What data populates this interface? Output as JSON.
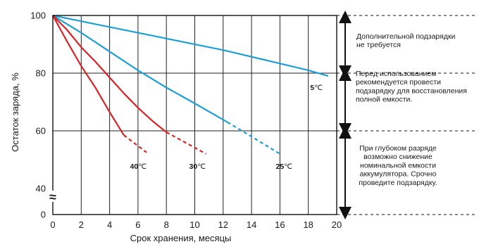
{
  "chart_data": {
    "type": "line",
    "xlabel": "Срок хранения, месяцы",
    "ylabel": "Остаток заряда, %",
    "xlim": [
      0,
      20
    ],
    "ylim": [
      0,
      100
    ],
    "y_axis_break": "≈",
    "grid": true,
    "x_ticks": [
      "0",
      "2",
      "4",
      "6",
      "8",
      "10",
      "12",
      "14",
      "16",
      "18",
      "20"
    ],
    "y_ticks": [
      "0",
      "40",
      "60",
      "80",
      "100"
    ],
    "series": [
      {
        "name": "5℃",
        "color": "#1e9fd8",
        "solid": [
          [
            0,
            100
          ],
          [
            3,
            97
          ],
          [
            6,
            94
          ],
          [
            9,
            91
          ],
          [
            12,
            88
          ],
          [
            15,
            84.5
          ],
          [
            18,
            81
          ],
          [
            19.4,
            79
          ]
        ],
        "dashed": []
      },
      {
        "name": "25℃",
        "color": "#1e9fd8",
        "solid": [
          [
            0,
            100
          ],
          [
            2,
            94
          ],
          [
            4,
            87.5
          ],
          [
            6,
            81
          ],
          [
            8,
            75
          ],
          [
            10,
            69.5
          ],
          [
            12.3,
            63
          ]
        ],
        "dashed": [
          [
            12.3,
            63
          ],
          [
            14,
            58
          ],
          [
            16,
            52
          ]
        ]
      },
      {
        "name": "30℃",
        "color": "#d82424",
        "solid": [
          [
            0,
            100
          ],
          [
            1,
            95
          ],
          [
            2,
            89
          ],
          [
            3,
            84
          ],
          [
            4,
            78.5
          ],
          [
            5,
            73
          ],
          [
            6,
            68
          ],
          [
            7,
            63.5
          ],
          [
            8,
            59.5
          ]
        ],
        "dashed": [
          [
            8,
            59.5
          ],
          [
            9.5,
            55.5
          ],
          [
            10.8,
            52
          ]
        ]
      },
      {
        "name": "40℃",
        "color": "#d82424",
        "solid": [
          [
            0,
            100
          ],
          [
            1,
            91
          ],
          [
            2,
            82.5
          ],
          [
            3,
            75
          ],
          [
            4,
            66.5
          ],
          [
            5,
            58.5
          ]
        ],
        "dashed": [
          [
            5,
            58.5
          ],
          [
            5.8,
            55.5
          ],
          [
            6.6,
            52.5
          ]
        ]
      }
    ],
    "temperature_labels": [
      {
        "num": "5",
        "unit": "℃"
      },
      {
        "num": "40",
        "unit": "℃"
      },
      {
        "num": "30",
        "unit": "℃"
      },
      {
        "num": "25",
        "unit": "℃"
      }
    ],
    "annotations": [
      {
        "lines": [
          "Дополнительной подзарядки",
          "не требуется"
        ]
      },
      {
        "lines": [
          "Перед использованием",
          "рекомендуется провести",
          "подзарядку для восстановления",
          "полной емкости."
        ]
      },
      {
        "lines": [
          "При глубоком разряде",
          "возможно снижение",
          "номинальной емкости",
          "аккумулятора. Срочно",
          "проведите подзарядку."
        ]
      }
    ]
  }
}
